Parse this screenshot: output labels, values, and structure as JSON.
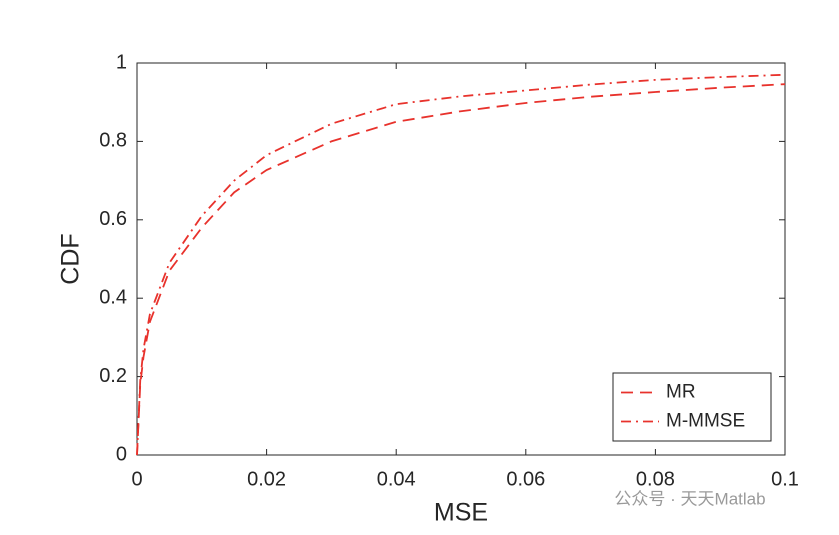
{
  "chart_data": {
    "type": "line",
    "x_label": "MSE",
    "y_label": "CDF",
    "x": [
      0,
      0.0005,
      0.001,
      0.002,
      0.005,
      0.01,
      0.015,
      0.02,
      0.03,
      0.04,
      0.05,
      0.06,
      0.07,
      0.08,
      0.09,
      0.1
    ],
    "series": [
      {
        "name": "MR",
        "color": "#e8322c",
        "style": "dashed",
        "values": [
          0,
          0.18,
          0.25,
          0.34,
          0.47,
          0.58,
          0.67,
          0.727,
          0.8,
          0.85,
          0.877,
          0.898,
          0.914,
          0.926,
          0.937,
          0.946
        ]
      },
      {
        "name": "M-MMSE",
        "color": "#e8322c",
        "style": "dashdot",
        "values": [
          0,
          0.19,
          0.27,
          0.36,
          0.49,
          0.61,
          0.7,
          0.765,
          0.845,
          0.895,
          0.915,
          0.93,
          0.945,
          0.957,
          0.964,
          0.97
        ]
      }
    ],
    "xlim": [
      0,
      0.1
    ],
    "xticks": [
      0,
      0.02,
      0.04,
      0.06,
      0.08,
      0.1
    ],
    "ylim": [
      0,
      1
    ],
    "yticks": [
      0,
      0.2,
      0.4,
      0.6,
      0.8,
      1
    ],
    "grid": false,
    "legend": "lower right",
    "watermark": "公众号 · 天天Matlab"
  }
}
